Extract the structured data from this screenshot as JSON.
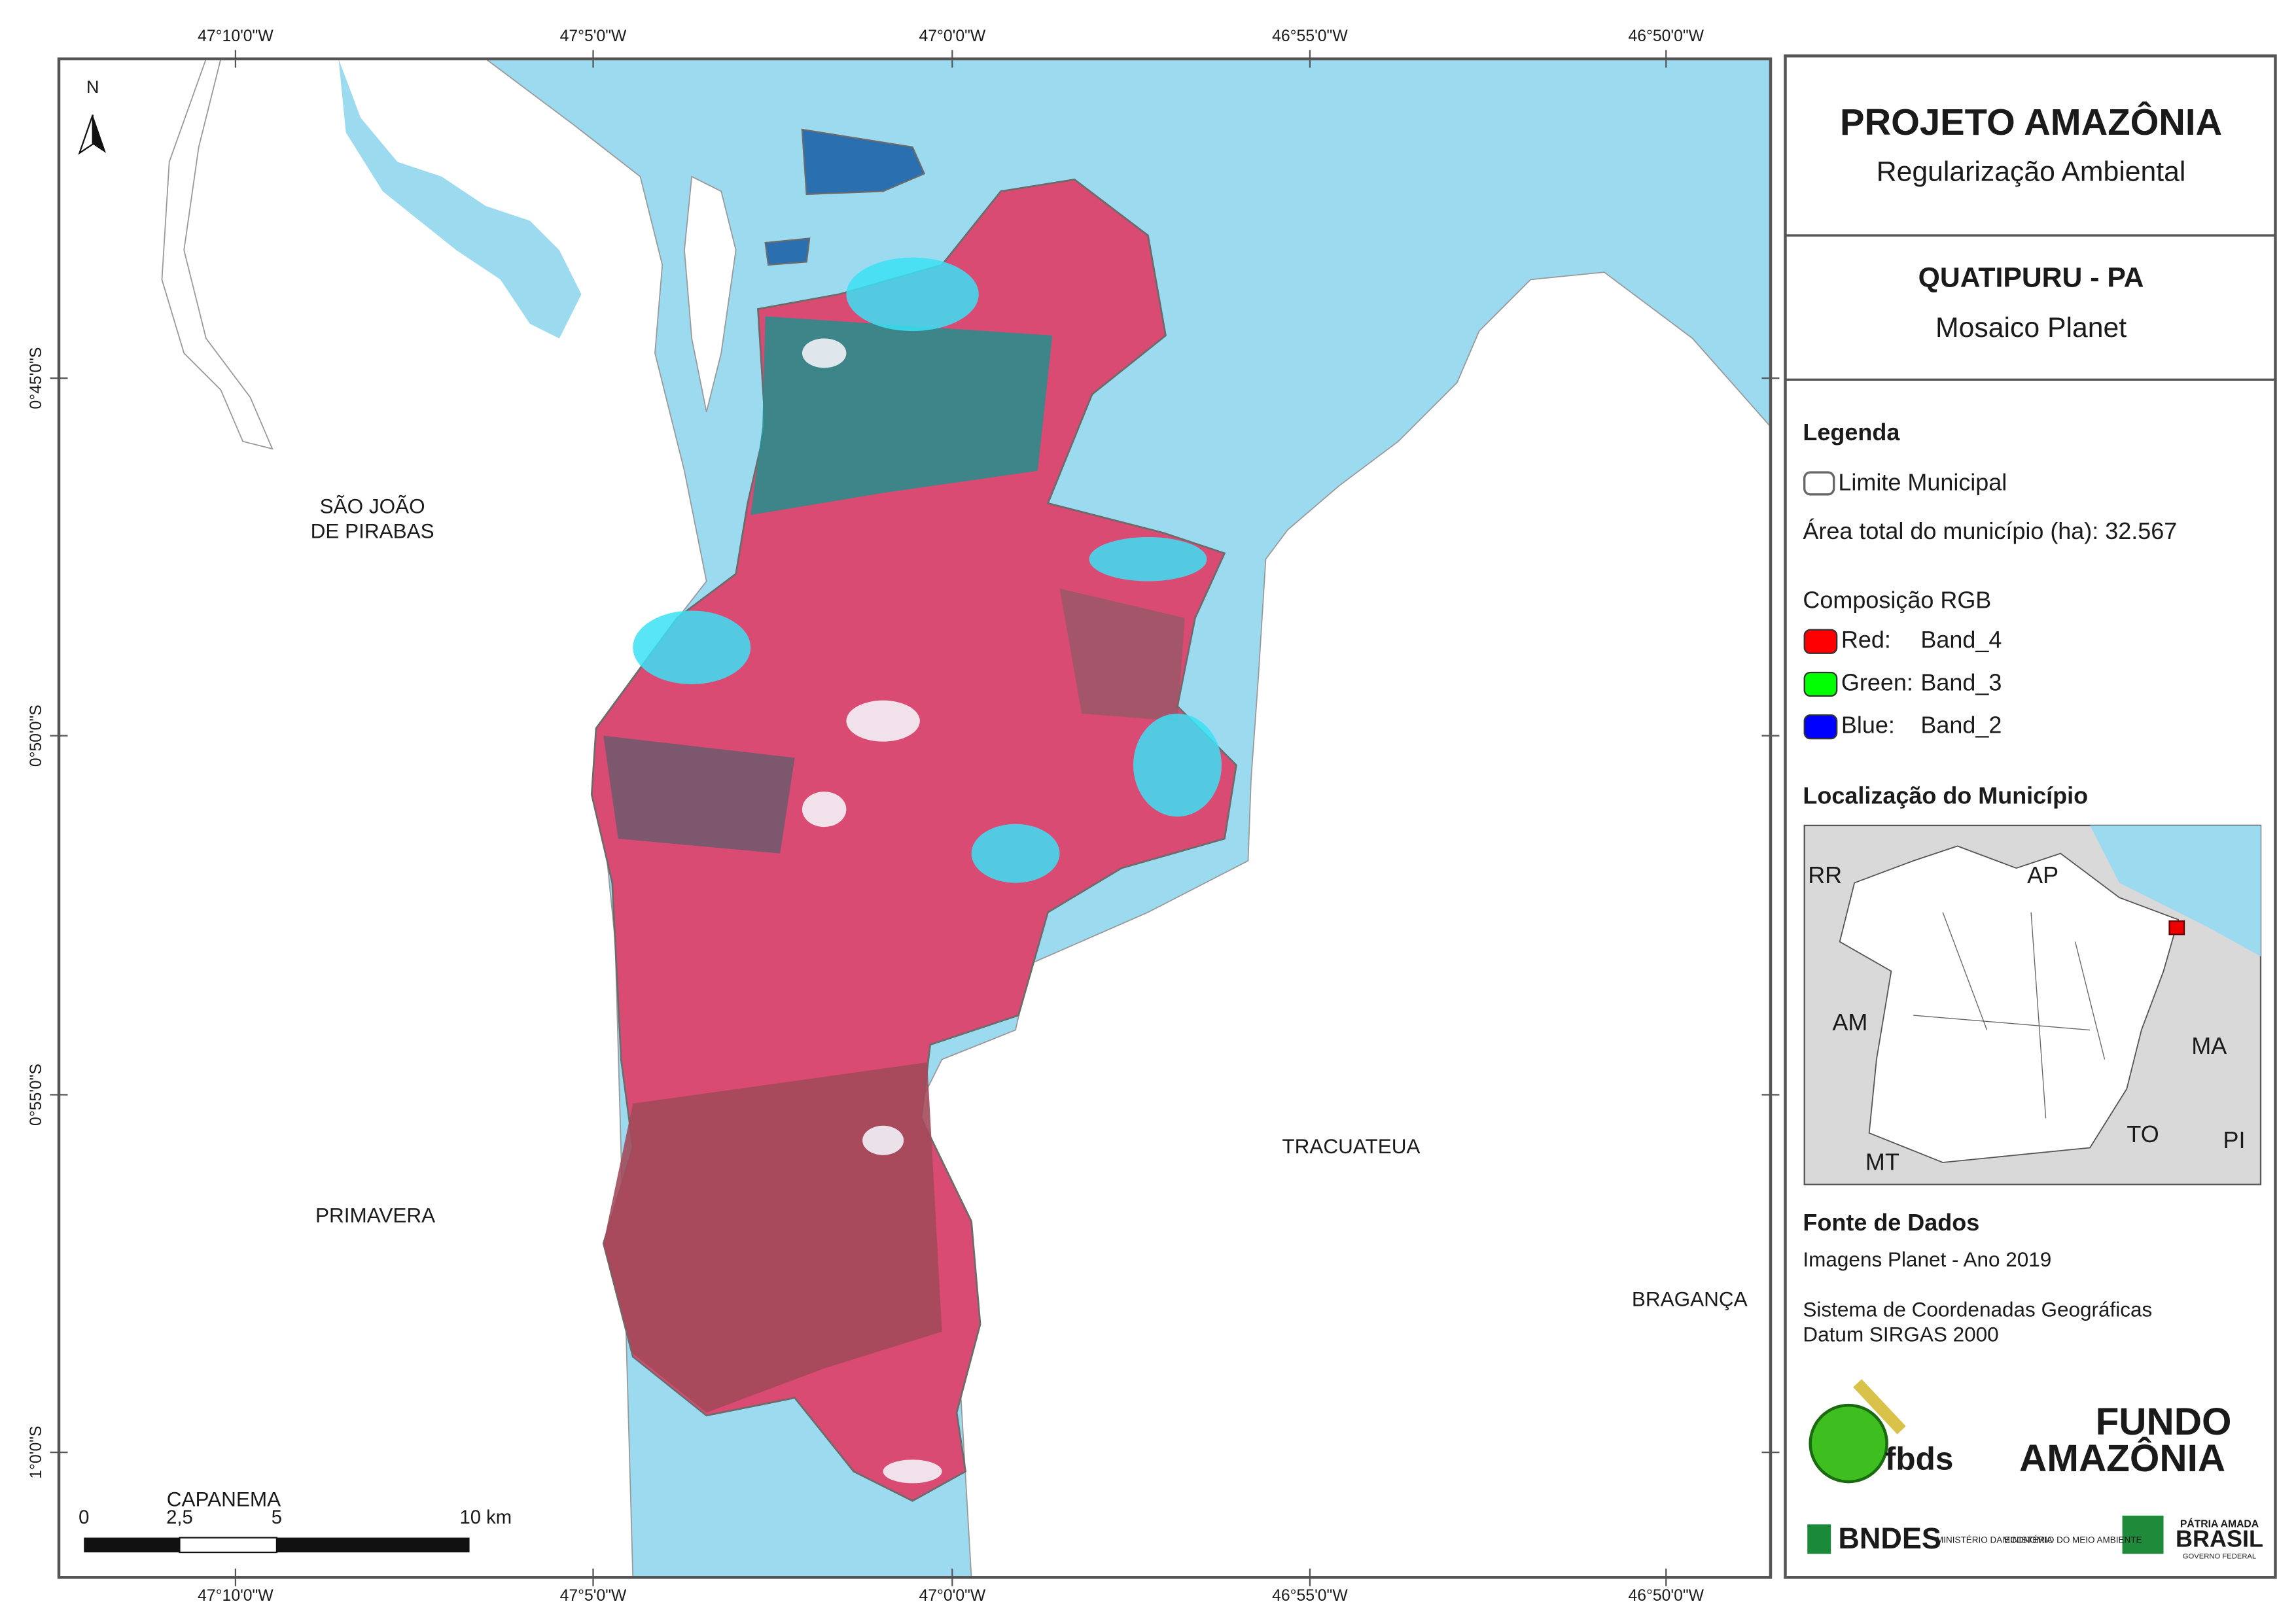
{
  "map": {
    "longitude_labels": [
      "47°10'0\"W",
      "47°5'0\"W",
      "47°0'0\"W",
      "46°55'0\"W",
      "46°50'0\"W"
    ],
    "latitude_labels": [
      "0°45'0\"S",
      "0°50'0\"S",
      "0°55'0\"S",
      "1°0'0\"S"
    ],
    "places": [
      "SÃO JOÃO",
      "DE PIRABAS",
      "PRIMAVERA",
      "TRACUATEUA",
      "BRAGANÇA",
      "CAPANEMA"
    ],
    "north": "N",
    "scale_labels": [
      "0",
      "2,5",
      "5",
      "10 km"
    ]
  },
  "panel": {
    "title": "PROJETO AMAZÔNIA",
    "subtitle": "Regularização Ambiental",
    "municipality": "QUATIPURU - PA",
    "mosaic": "Mosaico Planet",
    "legend_title": "Legenda",
    "limit": "Limite Municipal",
    "area": "Área total do município (ha): 32.567",
    "rgb_title": "Composição RGB",
    "bands": [
      {
        "label": "Red:",
        "band": "Band_4",
        "color": "#ff0000"
      },
      {
        "label": "Green:",
        "band": "Band_3",
        "color": "#00ff00"
      },
      {
        "label": "Blue:",
        "band": "Band_2",
        "color": "#0000ff"
      }
    ],
    "location_title": "Localização do Município",
    "states": [
      "RR",
      "AP",
      "AM",
      "MA",
      "TO",
      "PI",
      "MT"
    ],
    "sources_title": "Fonte de Dados",
    "sources": [
      "Imagens Planet - Ano 2019",
      "Sistema de Coordenadas Geográficas",
      "Datum SIRGAS 2000"
    ],
    "logos": [
      "fbds",
      "FUNDO",
      "AMAZÔNIA",
      "BNDES",
      "MINISTÉRIO DA ECONOMIA",
      "MINISTÉRIO DO MEIO AMBIENTE",
      "PÁTRIA AMADA",
      "BRASIL",
      "GOVERNO FEDERAL"
    ]
  }
}
